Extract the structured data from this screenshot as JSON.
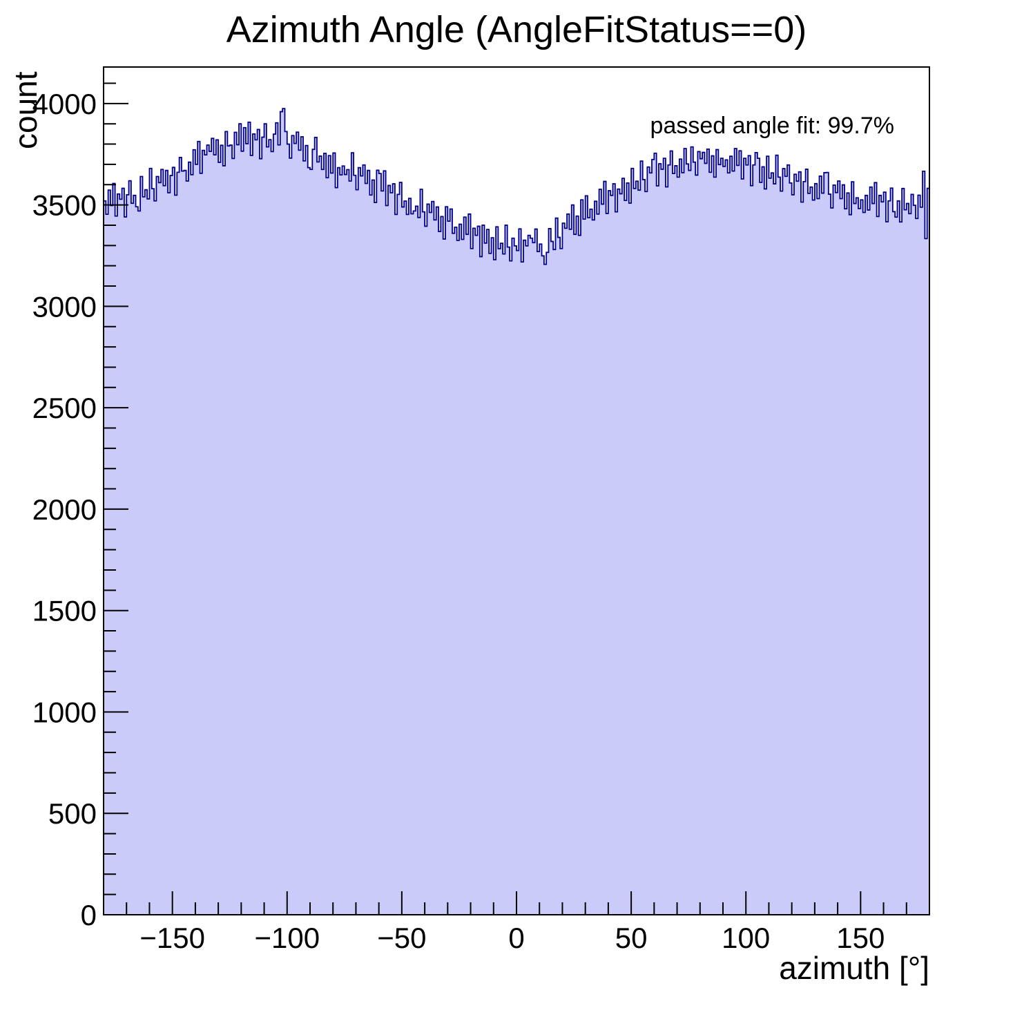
{
  "title": "Azimuth Angle (AngleFitStatus==0)",
  "annotation": {
    "text": "passed angle fit: 99.7%"
  },
  "axes": {
    "x": {
      "title": "azimuth [°]",
      "min": -180,
      "max": 180,
      "major_tick_step": 50,
      "minor_tick_step": 10,
      "tick_labels": [
        {
          "value": -150,
          "label": "−150"
        },
        {
          "value": -100,
          "label": "−100"
        },
        {
          "value": -50,
          "label": "−50"
        },
        {
          "value": 0,
          "label": "0"
        },
        {
          "value": 50,
          "label": "50"
        },
        {
          "value": 100,
          "label": "100"
        },
        {
          "value": 150,
          "label": "150"
        }
      ]
    },
    "y": {
      "title": "count",
      "min": 0,
      "max": 4180,
      "major_tick_step": 500,
      "minor_tick_step": 100,
      "tick_labels": [
        {
          "value": 0,
          "label": "0"
        },
        {
          "value": 500,
          "label": "500"
        },
        {
          "value": 1000,
          "label": "1000"
        },
        {
          "value": 1500,
          "label": "1500"
        },
        {
          "value": 2000,
          "label": "2000"
        },
        {
          "value": 2500,
          "label": "2500"
        },
        {
          "value": 3000,
          "label": "3000"
        },
        {
          "value": 3500,
          "label": "3500"
        },
        {
          "value": 4000,
          "label": "4000"
        }
      ]
    }
  },
  "chart_data": {
    "type": "bar",
    "title": "Azimuth Angle (AngleFitStatus==0)",
    "xlabel": "azimuth [°]",
    "ylabel": "count",
    "xlim": [
      -180,
      180
    ],
    "ylim": [
      0,
      4180
    ],
    "grid": false,
    "legend": "none",
    "annotation": "passed angle fit: 99.7%",
    "bin_start": -180,
    "bin_width": 1,
    "style": {
      "fill": "#cbcbfa",
      "line": "#00008c",
      "frame": "#000000"
    },
    "bins": [
      3520,
      3454,
      3573,
      3497,
      3606,
      3445,
      3554,
      3528,
      3582,
      3441,
      3550,
      3619,
      3508,
      3547,
      3491,
      3470,
      3640,
      3540,
      3575,
      3530,
      3680,
      3580,
      3520,
      3640,
      3610,
      3675,
      3595,
      3670,
      3560,
      3645,
      3685,
      3548,
      3661,
      3734,
      3667,
      3670,
      3618,
      3711,
      3649,
      3772,
      3700,
      3813,
      3656,
      3769,
      3747,
      3795,
      3764,
      3828,
      3747,
      3821,
      3710,
      3794,
      3693,
      3862,
      3791,
      3795,
      3729,
      3858,
      3797,
      3900,
      3765,
      3881,
      3802,
      3908,
      3744,
      3850,
      3821,
      3872,
      3728,
      3834,
      3900,
      3786,
      3822,
      3763,
      3849,
      3905,
      3796,
      3960,
      3975,
      3862,
      3800,
      3731,
      3842,
      3803,
      3859,
      3770,
      3836,
      3717,
      3793,
      3684,
      3675,
      3774,
      3833,
      3712,
      3741,
      3675,
      3754,
      3634,
      3743,
      3657,
      3756,
      3585,
      3684,
      3648,
      3692,
      3650,
      3674,
      3618,
      3757,
      3646,
      3575,
      3684,
      3643,
      3697,
      3606,
      3670,
      3549,
      3623,
      3512,
      3671,
      3655,
      3569,
      3668,
      3497,
      3596,
      3560,
      3604,
      3453,
      3552,
      3611,
      3490,
      3519,
      3453,
      3532,
      3456,
      3470,
      3494,
      3438,
      3577,
      3466,
      3395,
      3504,
      3463,
      3517,
      3426,
      3490,
      3369,
      3443,
      3332,
      3491,
      3420,
      3480,
      3360,
      3390,
      3325,
      3405,
      3330,
      3440,
      3355,
      3455,
      3285,
      3385,
      3350,
      3395,
      3245,
      3400,
      3312,
      3379,
      3261,
      3338,
      3230,
      3392,
      3284,
      3311,
      3258,
      3400,
      3292,
      3224,
      3336,
      3298,
      3275,
      3382,
      3219,
      3326,
      3298,
      3350,
      3336,
      3314,
      3381,
      3270,
      3307,
      3249,
      3207,
      3266,
      3383,
      3320,
      3280,
      3435,
      3340,
      3285,
      3410,
      3385,
      3455,
      3380,
      3500,
      3355,
      3445,
      3350,
      3525,
      3430,
      3545,
      3437,
      3479,
      3426,
      3518,
      3455,
      3577,
      3504,
      3616,
      3458,
      3570,
      3547,
      3604,
      3466,
      3578,
      3555,
      3631,
      3522,
      3608,
      3509,
      3680,
      3581,
      3617,
      3573,
      3716,
      3625,
      3566,
      3687,
      3658,
      3724,
      3755,
      3594,
      3703,
      3676,
      3730,
      3589,
      3697,
      3766,
      3655,
      3693,
      3637,
      3726,
      3659,
      3778,
      3702,
      3670,
      3786,
      3711,
      3647,
      3763,
      3728,
      3759,
      3705,
      3775,
      3661,
      3742,
      3637,
      3773,
      3699,
      3730,
      3690,
      3722,
      3658,
      3740,
      3667,
      3778,
      3695,
      3767,
      3628,
      3730,
      3697,
      3743,
      3595,
      3697,
      3758,
      3730,
      3611,
      3688,
      3579,
      3740,
      3632,
      3658,
      3604,
      3745,
      3637,
      3568,
      3679,
      3641,
      3697,
      3608,
      3550,
      3651,
      3617,
      3663,
      3514,
      3615,
      3676,
      3557,
      3588,
      3524,
      3605,
      3531,
      3642,
      3558,
      3659,
      3660,
      3553,
      3485,
      3598,
      3561,
      3618,
      3531,
      3599,
      3481,
      3559,
      3452,
      3614,
      3507,
      3535,
      3482,
      3525,
      3463,
      3547,
      3475,
      3588,
      3507,
      3610,
      3443,
      3547,
      3515,
      3563,
      3417,
      3520,
      3583,
      3467,
      3440,
      3520,
      3416,
      3581,
      3476,
      3507,
      3457,
      3552,
      3498,
      3433,
      3548,
      3489,
      3666,
      3334,
      3582
    ]
  }
}
